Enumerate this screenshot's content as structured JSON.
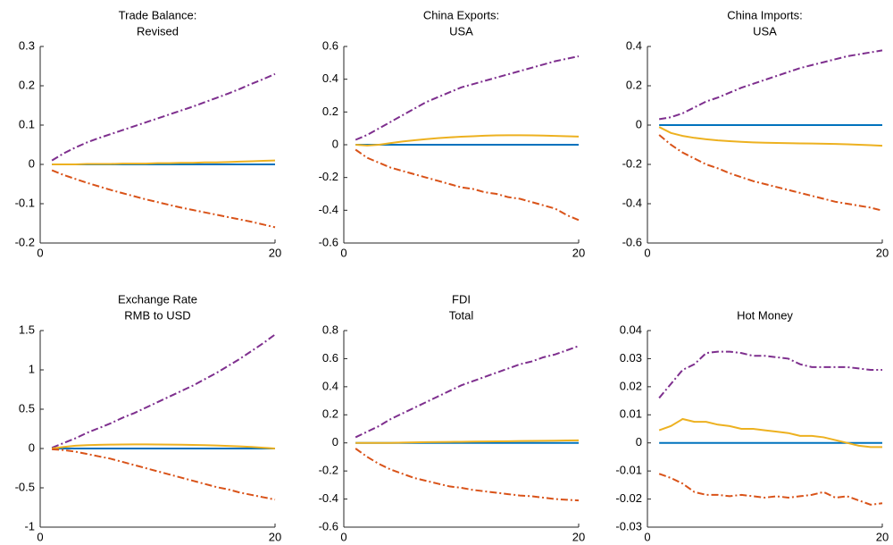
{
  "chart_data": [
    {
      "type": "line",
      "title": [
        "Trade Balance:",
        "Revised"
      ],
      "x": [
        1,
        2,
        3,
        4,
        5,
        6,
        7,
        8,
        9,
        10,
        11,
        12,
        13,
        14,
        15,
        16,
        17,
        18,
        19,
        20
      ],
      "xlim": [
        0,
        20
      ],
      "xticks": [
        0,
        20
      ],
      "ylim": [
        -0.2,
        0.3
      ],
      "yticks": [
        -0.2,
        -0.1,
        0,
        0.1,
        0.2,
        0.3
      ],
      "series": [
        {
          "color": "#0072BD",
          "dash": "solid",
          "values": [
            0,
            0,
            0,
            0,
            0,
            0,
            0,
            0,
            0,
            0,
            0,
            0,
            0,
            0,
            0,
            0,
            0,
            0,
            0,
            0
          ]
        },
        {
          "color": "#7E2F8E",
          "dash": "dashdot",
          "values": [
            0.01,
            0.028,
            0.043,
            0.056,
            0.067,
            0.077,
            0.087,
            0.097,
            0.107,
            0.117,
            0.127,
            0.137,
            0.147,
            0.158,
            0.169,
            0.18,
            0.192,
            0.205,
            0.217,
            0.23
          ]
        },
        {
          "color": "#EDB120",
          "dash": "solid",
          "values": [
            0,
            0,
            0,
            0.001,
            0.001,
            0.001,
            0.002,
            0.002,
            0.002,
            0.003,
            0.003,
            0.004,
            0.004,
            0.005,
            0.005,
            0.006,
            0.007,
            0.008,
            0.009,
            0.01
          ]
        },
        {
          "color": "#D95319",
          "dash": "dashdot",
          "values": [
            -0.015,
            -0.027,
            -0.037,
            -0.047,
            -0.056,
            -0.065,
            -0.073,
            -0.081,
            -0.089,
            -0.096,
            -0.103,
            -0.11,
            -0.116,
            -0.122,
            -0.128,
            -0.134,
            -0.14,
            -0.146,
            -0.153,
            -0.16
          ]
        }
      ]
    },
    {
      "type": "line",
      "title": [
        "China Exports:",
        "USA"
      ],
      "x": [
        1,
        2,
        3,
        4,
        5,
        6,
        7,
        8,
        9,
        10,
        11,
        12,
        13,
        14,
        15,
        16,
        17,
        18,
        19,
        20
      ],
      "xlim": [
        0,
        20
      ],
      "xticks": [
        0,
        20
      ],
      "ylim": [
        -0.6,
        0.6
      ],
      "yticks": [
        -0.6,
        -0.4,
        -0.2,
        0,
        0.2,
        0.4,
        0.6
      ],
      "series": [
        {
          "color": "#0072BD",
          "dash": "solid",
          "values": [
            0,
            0,
            0,
            0,
            0,
            0,
            0,
            0,
            0,
            0,
            0,
            0,
            0,
            0,
            0,
            0,
            0,
            0,
            0,
            0
          ]
        },
        {
          "color": "#7E2F8E",
          "dash": "dashdot",
          "values": [
            0.03,
            0.06,
            0.1,
            0.14,
            0.18,
            0.22,
            0.26,
            0.29,
            0.32,
            0.35,
            0.37,
            0.39,
            0.41,
            0.43,
            0.45,
            0.47,
            0.49,
            0.51,
            0.525,
            0.54
          ]
        },
        {
          "color": "#EDB120",
          "dash": "solid",
          "values": [
            0,
            -0.005,
            0,
            0.01,
            0.02,
            0.027,
            0.034,
            0.04,
            0.045,
            0.049,
            0.052,
            0.055,
            0.057,
            0.058,
            0.058,
            0.057,
            0.056,
            0.054,
            0.052,
            0.05
          ]
        },
        {
          "color": "#D95319",
          "dash": "dashdot",
          "values": [
            -0.03,
            -0.08,
            -0.11,
            -0.14,
            -0.16,
            -0.18,
            -0.2,
            -0.22,
            -0.24,
            -0.26,
            -0.27,
            -0.29,
            -0.3,
            -0.32,
            -0.33,
            -0.35,
            -0.37,
            -0.39,
            -0.43,
            -0.46
          ]
        }
      ]
    },
    {
      "type": "line",
      "title": [
        "China Imports:",
        "USA"
      ],
      "x": [
        1,
        2,
        3,
        4,
        5,
        6,
        7,
        8,
        9,
        10,
        11,
        12,
        13,
        14,
        15,
        16,
        17,
        18,
        19,
        20
      ],
      "xlim": [
        0,
        20
      ],
      "xticks": [
        0,
        20
      ],
      "ylim": [
        -0.6,
        0.4
      ],
      "yticks": [
        -0.6,
        -0.4,
        -0.2,
        0,
        0.2,
        0.4
      ],
      "series": [
        {
          "color": "#0072BD",
          "dash": "solid",
          "values": [
            0,
            0,
            0,
            0,
            0,
            0,
            0,
            0,
            0,
            0,
            0,
            0,
            0,
            0,
            0,
            0,
            0,
            0,
            0,
            0
          ]
        },
        {
          "color": "#7E2F8E",
          "dash": "dashdot",
          "values": [
            0.03,
            0.04,
            0.06,
            0.09,
            0.12,
            0.14,
            0.165,
            0.19,
            0.21,
            0.23,
            0.25,
            0.27,
            0.29,
            0.305,
            0.32,
            0.335,
            0.35,
            0.36,
            0.37,
            0.38
          ]
        },
        {
          "color": "#EDB120",
          "dash": "solid",
          "values": [
            -0.01,
            -0.04,
            -0.055,
            -0.065,
            -0.072,
            -0.078,
            -0.082,
            -0.085,
            -0.088,
            -0.09,
            -0.091,
            -0.092,
            -0.093,
            -0.094,
            -0.095,
            -0.096,
            -0.098,
            -0.1,
            -0.102,
            -0.105
          ]
        },
        {
          "color": "#D95319",
          "dash": "dashdot",
          "values": [
            -0.05,
            -0.1,
            -0.14,
            -0.17,
            -0.2,
            -0.22,
            -0.245,
            -0.265,
            -0.285,
            -0.3,
            -0.315,
            -0.33,
            -0.345,
            -0.36,
            -0.375,
            -0.39,
            -0.4,
            -0.41,
            -0.42,
            -0.435
          ]
        }
      ]
    },
    {
      "type": "line",
      "title": [
        "Exchange Rate",
        "RMB to USD"
      ],
      "x": [
        1,
        2,
        3,
        4,
        5,
        6,
        7,
        8,
        9,
        10,
        11,
        12,
        13,
        14,
        15,
        16,
        17,
        18,
        19,
        20
      ],
      "xlim": [
        0,
        20
      ],
      "xticks": [
        0,
        20
      ],
      "ylim": [
        -1,
        1.5
      ],
      "yticks": [
        -1,
        -0.5,
        0,
        0.5,
        1,
        1.5
      ],
      "series": [
        {
          "color": "#0072BD",
          "dash": "solid",
          "values": [
            0,
            0,
            0,
            0,
            0,
            0,
            0,
            0,
            0,
            0,
            0,
            0,
            0,
            0,
            0,
            0,
            0,
            0,
            0,
            0
          ]
        },
        {
          "color": "#7E2F8E",
          "dash": "dashdot",
          "values": [
            0.01,
            0.07,
            0.13,
            0.2,
            0.26,
            0.32,
            0.39,
            0.45,
            0.52,
            0.59,
            0.66,
            0.73,
            0.8,
            0.88,
            0.96,
            1.05,
            1.14,
            1.24,
            1.34,
            1.45
          ]
        },
        {
          "color": "#EDB120",
          "dash": "solid",
          "values": [
            0,
            0.02,
            0.035,
            0.042,
            0.047,
            0.05,
            0.051,
            0.052,
            0.052,
            0.051,
            0.05,
            0.048,
            0.045,
            0.042,
            0.038,
            0.033,
            0.027,
            0.02,
            0.01,
            0
          ]
        },
        {
          "color": "#D95319",
          "dash": "dashdot",
          "values": [
            -0.01,
            -0.02,
            -0.04,
            -0.07,
            -0.1,
            -0.13,
            -0.17,
            -0.21,
            -0.25,
            -0.29,
            -0.33,
            -0.37,
            -0.41,
            -0.45,
            -0.49,
            -0.52,
            -0.56,
            -0.59,
            -0.62,
            -0.65
          ]
        }
      ]
    },
    {
      "type": "line",
      "title": [
        "FDI",
        "Total"
      ],
      "x": [
        1,
        2,
        3,
        4,
        5,
        6,
        7,
        8,
        9,
        10,
        11,
        12,
        13,
        14,
        15,
        16,
        17,
        18,
        19,
        20
      ],
      "xlim": [
        0,
        20
      ],
      "xticks": [
        0,
        20
      ],
      "ylim": [
        -0.6,
        0.8
      ],
      "yticks": [
        -0.6,
        -0.4,
        -0.2,
        0,
        0.2,
        0.4,
        0.6,
        0.8
      ],
      "series": [
        {
          "color": "#0072BD",
          "dash": "solid",
          "values": [
            0,
            0,
            0,
            0,
            0,
            0,
            0,
            0,
            0,
            0,
            0,
            0,
            0,
            0,
            0,
            0,
            0,
            0,
            0,
            0
          ]
        },
        {
          "color": "#7E2F8E",
          "dash": "dashdot",
          "values": [
            0.04,
            0.08,
            0.12,
            0.17,
            0.21,
            0.25,
            0.29,
            0.33,
            0.37,
            0.41,
            0.44,
            0.47,
            0.5,
            0.53,
            0.56,
            0.58,
            0.61,
            0.63,
            0.66,
            0.69
          ]
        },
        {
          "color": "#EDB120",
          "dash": "solid",
          "values": [
            0,
            0,
            0,
            0,
            0.002,
            0.004,
            0.005,
            0.006,
            0.007,
            0.008,
            0.009,
            0.01,
            0.011,
            0.012,
            0.013,
            0.014,
            0.015,
            0.016,
            0.017,
            0.018
          ]
        },
        {
          "color": "#D95319",
          "dash": "dashdot",
          "values": [
            -0.04,
            -0.1,
            -0.15,
            -0.19,
            -0.22,
            -0.25,
            -0.27,
            -0.29,
            -0.31,
            -0.32,
            -0.335,
            -0.345,
            -0.355,
            -0.365,
            -0.375,
            -0.38,
            -0.39,
            -0.4,
            -0.405,
            -0.41
          ]
        }
      ]
    },
    {
      "type": "line",
      "title": [
        "Hot Money"
      ],
      "x": [
        1,
        2,
        3,
        4,
        5,
        6,
        7,
        8,
        9,
        10,
        11,
        12,
        13,
        14,
        15,
        16,
        17,
        18,
        19,
        20
      ],
      "xlim": [
        0,
        20
      ],
      "xticks": [
        0,
        20
      ],
      "ylim": [
        -0.03,
        0.04
      ],
      "yticks": [
        -0.03,
        -0.02,
        -0.01,
        0,
        0.01,
        0.02,
        0.03,
        0.04
      ],
      "series": [
        {
          "color": "#0072BD",
          "dash": "solid",
          "values": [
            0,
            0,
            0,
            0,
            0,
            0,
            0,
            0,
            0,
            0,
            0,
            0,
            0,
            0,
            0,
            0,
            0,
            0,
            0,
            0
          ]
        },
        {
          "color": "#7E2F8E",
          "dash": "dashdot",
          "values": [
            0.016,
            0.021,
            0.026,
            0.028,
            0.032,
            0.0325,
            0.0325,
            0.032,
            0.031,
            0.031,
            0.0305,
            0.03,
            0.028,
            0.027,
            0.027,
            0.027,
            0.027,
            0.0265,
            0.026,
            0.026
          ]
        },
        {
          "color": "#EDB120",
          "dash": "solid",
          "values": [
            0.0045,
            0.006,
            0.0085,
            0.0075,
            0.0075,
            0.0065,
            0.006,
            0.005,
            0.005,
            0.0045,
            0.004,
            0.0035,
            0.0025,
            0.0025,
            0.002,
            0.001,
            0,
            -0.001,
            -0.0015,
            -0.0015
          ]
        },
        {
          "color": "#D95319",
          "dash": "dashdot",
          "values": [
            -0.011,
            -0.0125,
            -0.0145,
            -0.0175,
            -0.0185,
            -0.0185,
            -0.019,
            -0.0185,
            -0.019,
            -0.0195,
            -0.019,
            -0.0195,
            -0.019,
            -0.0185,
            -0.0175,
            -0.0195,
            -0.019,
            -0.0205,
            -0.022,
            -0.0215
          ]
        }
      ]
    }
  ]
}
